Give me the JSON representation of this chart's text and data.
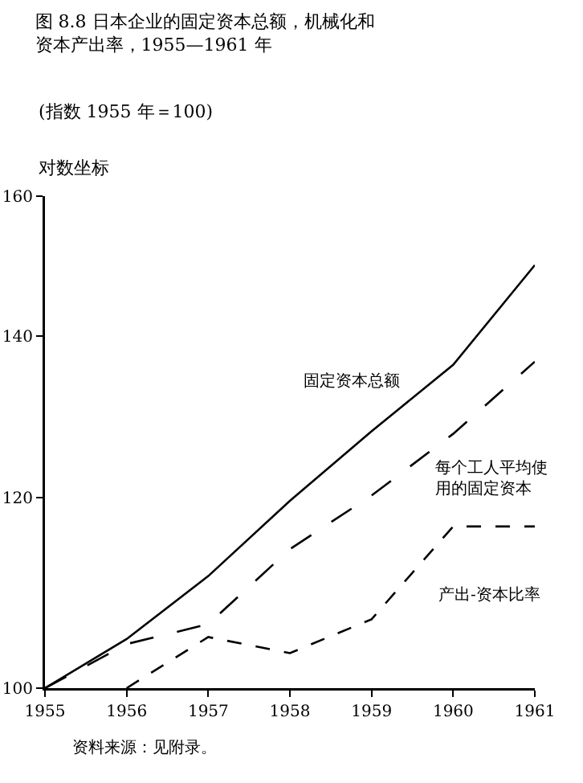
{
  "chart_data": {
    "type": "line",
    "title": "图 8.8 日本企业的固定资本总额，机械化和资本产出率，1955—1961 年",
    "subtitle": "(指数 1955 年＝100)",
    "ylabel": "对数坐标",
    "annotations": [
      "资料来源：见附录。"
    ],
    "x": [
      1955,
      1956,
      1957,
      1958,
      1959,
      1960,
      1961
    ],
    "series": [
      {
        "name": "固定资本总额",
        "color": "#000000",
        "line_style": "solid",
        "values": [
          100,
          104.8,
          111.3,
          119.6,
          127.8,
          136.2,
          149.8
        ]
      },
      {
        "name": "每个工人平均使用的固定资本",
        "color": "#000000",
        "line_style": "dashed",
        "values": [
          100,
          104.3,
          106.3,
          114.2,
          120.2,
          127.5,
          136.6
        ]
      },
      {
        "name": "产出-资本比率",
        "color": "#000000",
        "line_style": "dashed",
        "values": [
          null,
          100,
          105,
          103.4,
          106.8,
          116.7,
          116.7
        ]
      }
    ],
    "xlim": [
      1955,
      1961
    ],
    "xticks": [
      1955,
      1956,
      1957,
      1958,
      1959,
      1960,
      1961
    ],
    "ylim": [
      100,
      160
    ],
    "yticks": [
      100,
      120,
      140,
      160
    ],
    "log": true,
    "grid": false,
    "legend": false,
    "marker": "none"
  }
}
